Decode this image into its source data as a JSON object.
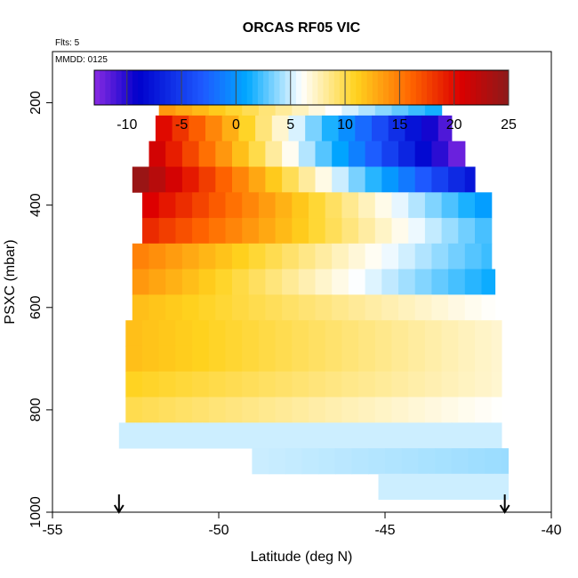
{
  "chart_data": {
    "type": "heatmap",
    "title": "ORCAS RF05 VIC",
    "subtitle_flights": "Flts: 5",
    "subtitle_date": "MMDD: 0125",
    "xlabel": "Latitude (deg N)",
    "ylabel": "PSXC (mbar)",
    "xlim": [
      -55,
      -40
    ],
    "ylim": [
      1000,
      100
    ],
    "x_ticks": [
      -55,
      -50,
      -45,
      -40
    ],
    "y_ticks": [
      200,
      400,
      600,
      800,
      1000
    ],
    "colorbar": {
      "range": [
        -13,
        25
      ],
      "ticks": [
        -10,
        -5,
        0,
        5,
        10,
        15,
        20,
        25
      ],
      "colors": [
        "#8a2be2",
        "#0000cc",
        "#1e5aff",
        "#00a8ff",
        "#ffffff",
        "#ffd21e",
        "#ff6600",
        "#dd0000",
        "#8b1a1a"
      ]
    },
    "layers": [
      {
        "p_top": 175,
        "p_bot": 225,
        "lat_start": -51.8,
        "lat_end": -43.3,
        "v_start": 14,
        "v_end": 1
      },
      {
        "p_top": 225,
        "p_bot": 275,
        "lat_start": -51.9,
        "lat_end": -43.0,
        "v_start": 21,
        "v_end": -12
      },
      {
        "p_top": 275,
        "p_bot": 325,
        "lat_start": -52.1,
        "lat_end": -42.6,
        "v_start": 22,
        "v_end": -13
      },
      {
        "p_top": 325,
        "p_bot": 375,
        "lat_start": -52.6,
        "lat_end": -42.3,
        "v_start": 25,
        "v_end": -8
      },
      {
        "p_top": 375,
        "p_bot": 425,
        "lat_start": -52.3,
        "lat_end": -41.8,
        "v_start": 21,
        "v_end": 0
      },
      {
        "p_top": 425,
        "p_bot": 475,
        "lat_start": -52.3,
        "lat_end": -41.8,
        "v_start": 19,
        "v_end": 2
      },
      {
        "p_top": 475,
        "p_bot": 525,
        "lat_start": -52.6,
        "lat_end": -41.8,
        "v_start": 15,
        "v_end": 2
      },
      {
        "p_top": 525,
        "p_bot": 575,
        "lat_start": -52.6,
        "lat_end": -41.7,
        "v_start": 14,
        "v_end": 1
      },
      {
        "p_top": 575,
        "p_bot": 625,
        "lat_start": -52.6,
        "lat_end": -41.7,
        "v_start": 12,
        "v_end": 6
      },
      {
        "p_top": 625,
        "p_bot": 675,
        "lat_start": -52.8,
        "lat_end": -41.5,
        "v_start": 12,
        "v_end": 7
      },
      {
        "p_top": 675,
        "p_bot": 725,
        "lat_start": -52.8,
        "lat_end": -41.5,
        "v_start": 12,
        "v_end": 7
      },
      {
        "p_top": 725,
        "p_bot": 775,
        "lat_start": -52.8,
        "lat_end": -41.5,
        "v_start": 11,
        "v_end": 7
      },
      {
        "p_top": 775,
        "p_bot": 825,
        "lat_start": -52.8,
        "lat_end": -41.5,
        "v_start": 10,
        "v_end": 6
      },
      {
        "p_top": 825,
        "p_bot": 875,
        "lat_start": -53.0,
        "lat_end": -41.5,
        "v_start": 5,
        "v_end": 5
      },
      {
        "p_top": 875,
        "p_bot": 925,
        "lat_start": -49.0,
        "lat_end": -41.3,
        "v_start": 5,
        "v_end": 4
      },
      {
        "p_top": 925,
        "p_bot": 975,
        "lat_start": -45.2,
        "lat_end": -41.3,
        "v_start": 5,
        "v_end": 5
      }
    ],
    "arrows_lat": [
      -53.0,
      -41.4
    ]
  }
}
